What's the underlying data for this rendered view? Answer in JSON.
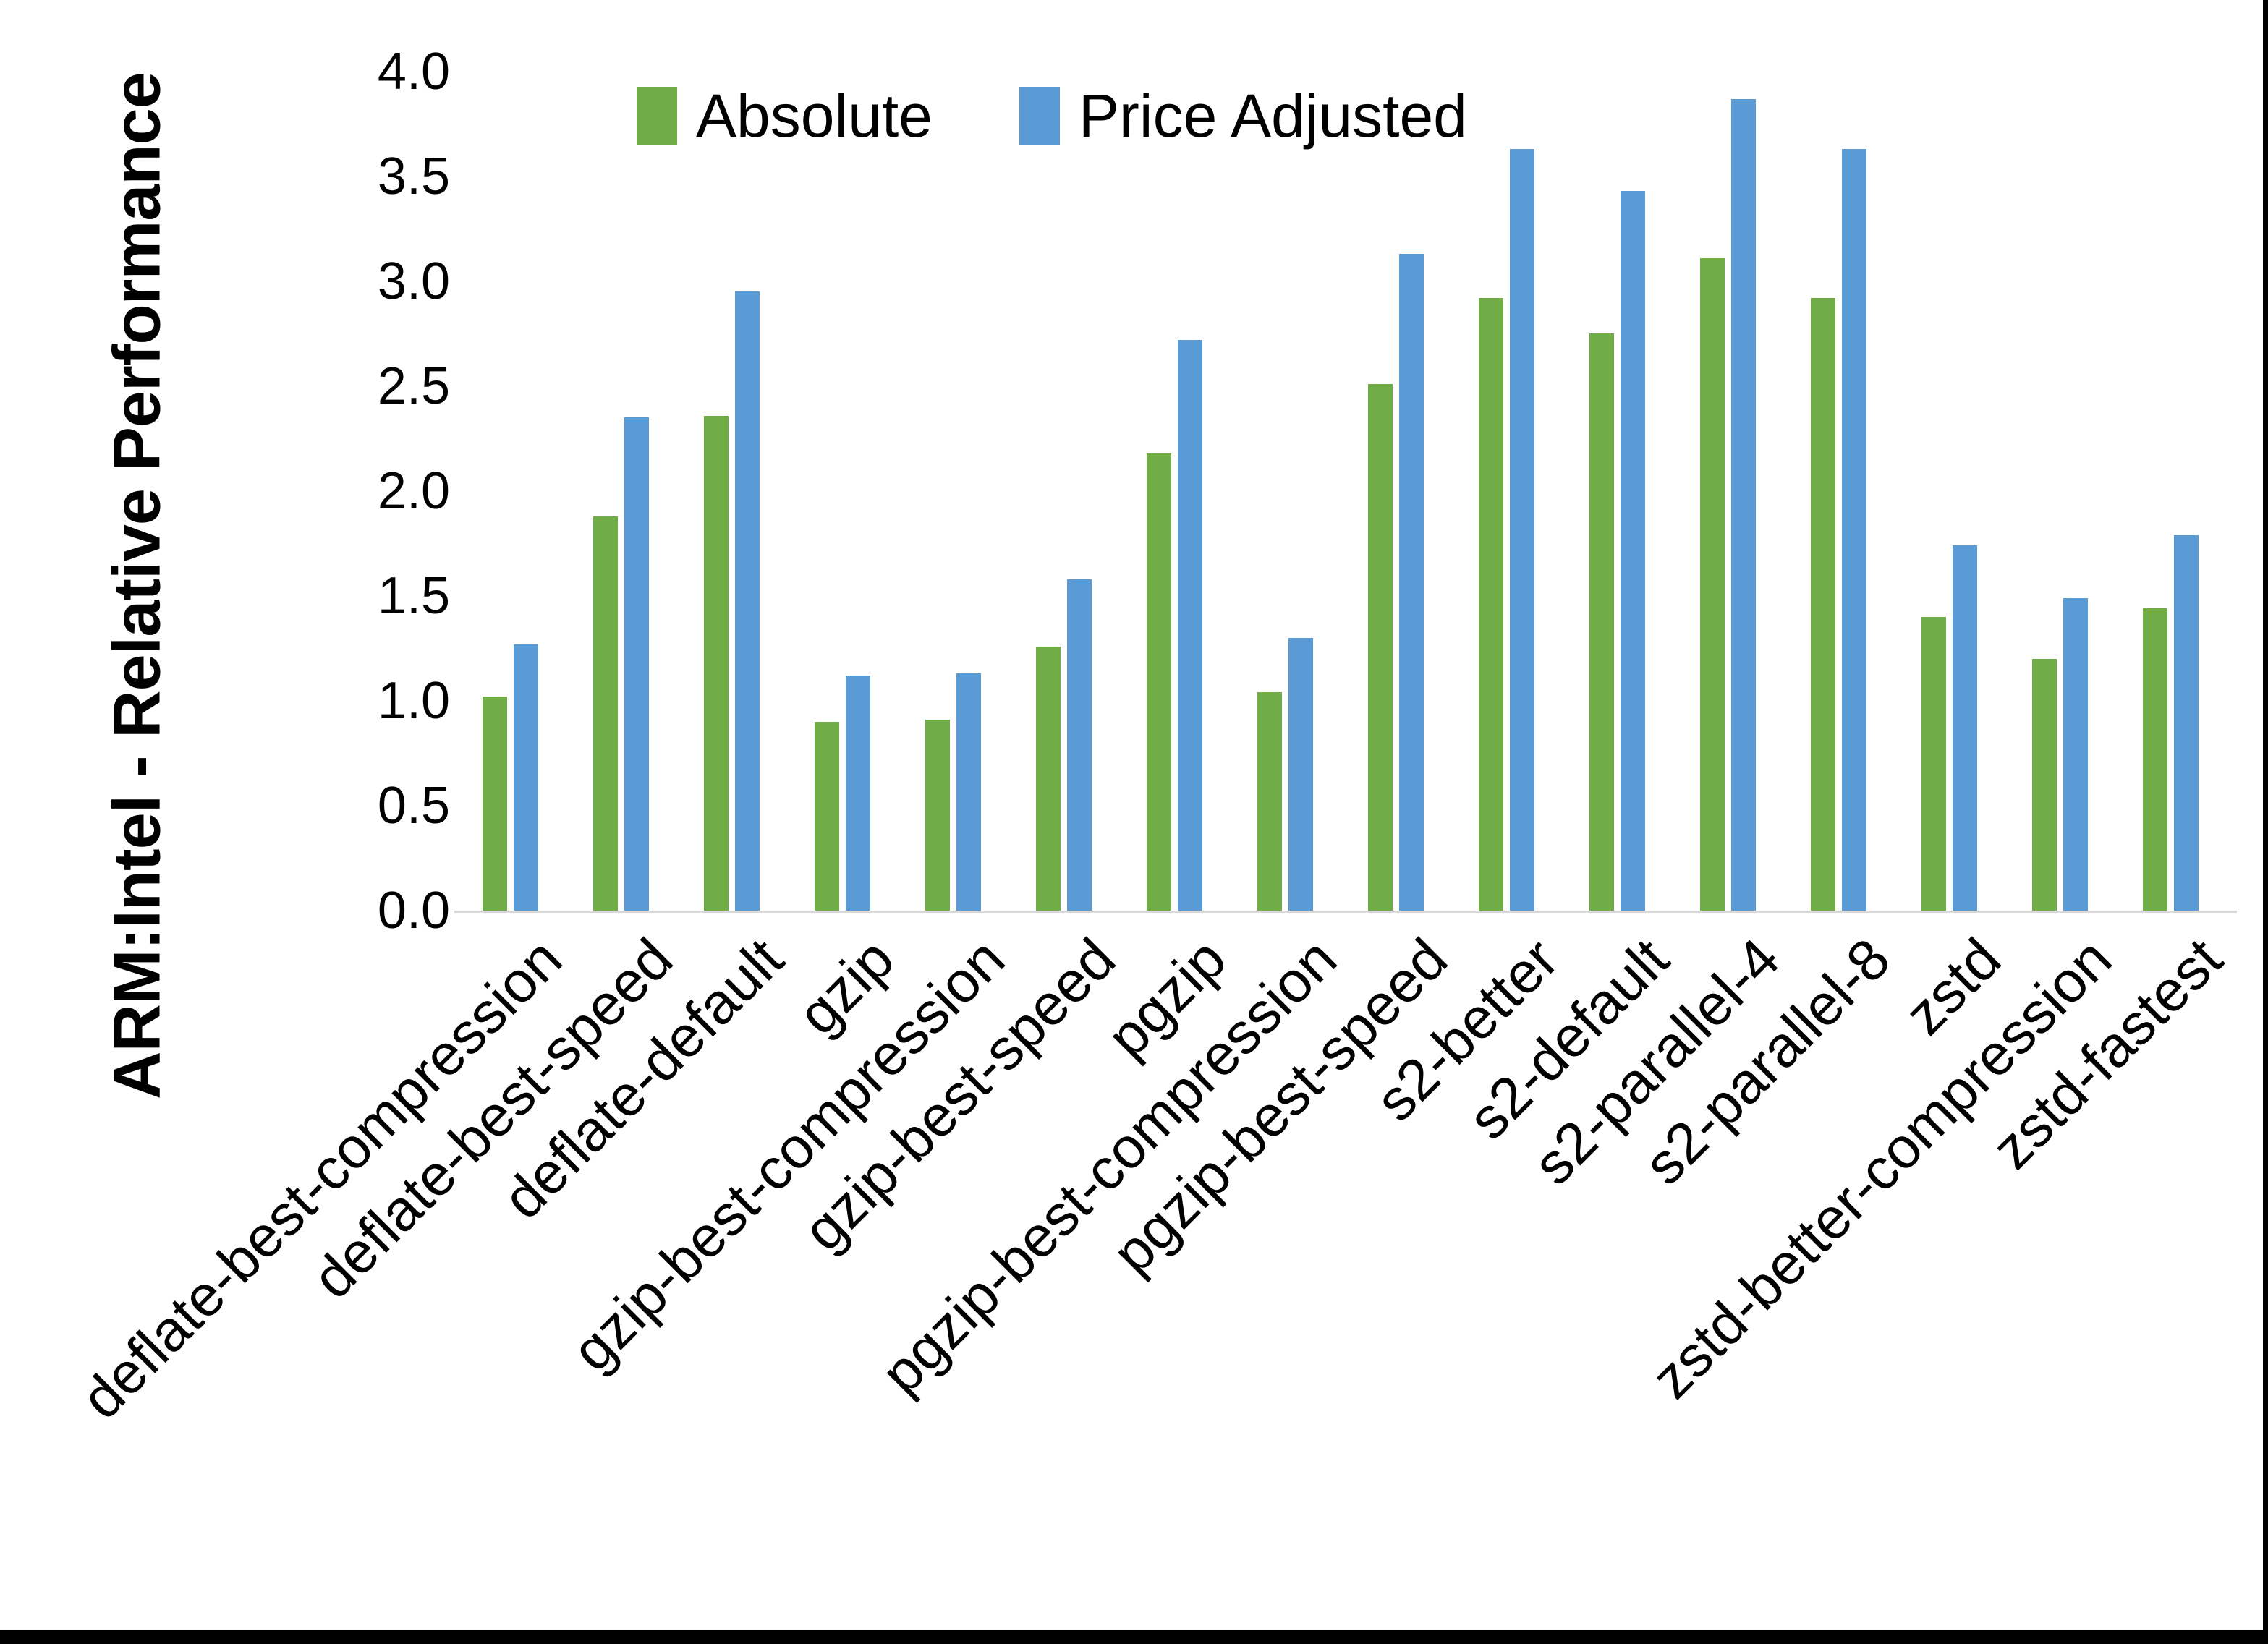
{
  "chart_data": {
    "type": "bar",
    "title": "",
    "ylabel": "ARM:Intel - Relative Performance",
    "xlabel": "",
    "ylim": [
      0,
      4.0
    ],
    "ytick_step": 0.5,
    "ytick_labels": [
      "0.0",
      "0.5",
      "1.0",
      "1.5",
      "2.0",
      "2.5",
      "3.0",
      "3.5",
      "4.0"
    ],
    "grid": false,
    "legend_position": "top-center",
    "axis_line_color": "#d9d9d9",
    "categories": [
      "deflate-best-compression",
      "deflate-best-speed",
      "deflate-default",
      "gzip",
      "gzip-best-compression",
      "gzip-best-speed",
      "pgzip",
      "pgzip-best-compression",
      "pgzip-best-speed",
      "s2-better",
      "s2-default",
      "s2-parallel-4",
      "s2-parallel-8",
      "zstd",
      "zstd-better-compression",
      "zstd-fastest"
    ],
    "series": [
      {
        "name": "Absolute",
        "color": "#70AD47",
        "values": [
          1.02,
          1.88,
          2.36,
          0.9,
          0.91,
          1.26,
          2.18,
          1.04,
          2.51,
          2.92,
          2.75,
          3.11,
          2.92,
          1.4,
          1.2,
          1.44
        ]
      },
      {
        "name": "Price Adjusted",
        "color": "#5B9BD5",
        "values": [
          1.27,
          2.35,
          2.95,
          1.12,
          1.13,
          1.58,
          2.72,
          1.3,
          3.13,
          3.63,
          3.43,
          3.87,
          3.63,
          1.74,
          1.49,
          1.79
        ]
      }
    ]
  }
}
